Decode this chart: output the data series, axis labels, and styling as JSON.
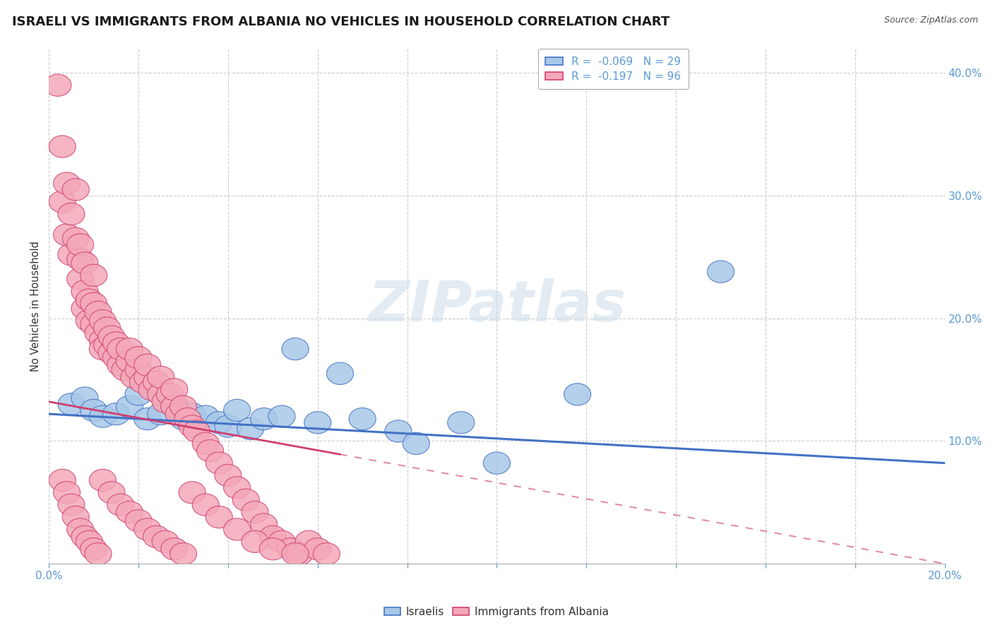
{
  "title": "ISRAELI VS IMMIGRANTS FROM ALBANIA NO VEHICLES IN HOUSEHOLD CORRELATION CHART",
  "source_text": "Source: ZipAtlas.com",
  "ylabel": "No Vehicles in Household",
  "xlim": [
    0.0,
    0.2
  ],
  "ylim": [
    0.0,
    0.42
  ],
  "legend_r1": "-0.069",
  "legend_n1": "29",
  "legend_r2": "-0.197",
  "legend_n2": "96",
  "watermark": "ZIPatlas",
  "color_israeli": "#a8c8e8",
  "color_albania": "#f4a8b8",
  "color_line_israeli": "#4472c4",
  "color_line_albania": "#d04070",
  "color_title": "#1a1a1a",
  "color_source": "#555555",
  "color_axis": "#5b9bd5",
  "isr_line_start_y": 0.122,
  "isr_line_end_y": 0.082,
  "alb_line_start_y": 0.132,
  "alb_line_end_y": 0.0,
  "alb_line_solid_end_x": 0.065,
  "israelis_x": [
    0.005,
    0.008,
    0.01,
    0.012,
    0.015,
    0.018,
    0.02,
    0.022,
    0.025,
    0.028,
    0.03,
    0.032,
    0.035,
    0.038,
    0.04,
    0.042,
    0.045,
    0.048,
    0.052,
    0.055,
    0.06,
    0.065,
    0.07,
    0.078,
    0.082,
    0.092,
    0.1,
    0.118,
    0.15
  ],
  "israelis_y": [
    0.13,
    0.135,
    0.125,
    0.12,
    0.122,
    0.128,
    0.138,
    0.118,
    0.122,
    0.13,
    0.118,
    0.122,
    0.12,
    0.115,
    0.112,
    0.125,
    0.11,
    0.118,
    0.12,
    0.175,
    0.115,
    0.155,
    0.118,
    0.108,
    0.098,
    0.115,
    0.082,
    0.138,
    0.238
  ],
  "albania_x": [
    0.002,
    0.003,
    0.003,
    0.004,
    0.004,
    0.005,
    0.005,
    0.006,
    0.006,
    0.007,
    0.007,
    0.007,
    0.008,
    0.008,
    0.008,
    0.009,
    0.009,
    0.01,
    0.01,
    0.01,
    0.011,
    0.011,
    0.012,
    0.012,
    0.012,
    0.013,
    0.013,
    0.014,
    0.014,
    0.015,
    0.015,
    0.016,
    0.016,
    0.017,
    0.018,
    0.018,
    0.019,
    0.02,
    0.02,
    0.021,
    0.022,
    0.022,
    0.023,
    0.024,
    0.025,
    0.025,
    0.026,
    0.027,
    0.028,
    0.028,
    0.029,
    0.03,
    0.031,
    0.032,
    0.033,
    0.035,
    0.036,
    0.038,
    0.04,
    0.042,
    0.044,
    0.046,
    0.048,
    0.05,
    0.052,
    0.054,
    0.056,
    0.058,
    0.06,
    0.062,
    0.003,
    0.004,
    0.005,
    0.006,
    0.007,
    0.008,
    0.009,
    0.01,
    0.011,
    0.012,
    0.014,
    0.016,
    0.018,
    0.02,
    0.022,
    0.024,
    0.026,
    0.028,
    0.03,
    0.032,
    0.035,
    0.038,
    0.042,
    0.046,
    0.05,
    0.055
  ],
  "albania_y": [
    0.39,
    0.34,
    0.295,
    0.268,
    0.31,
    0.252,
    0.285,
    0.265,
    0.305,
    0.248,
    0.232,
    0.26,
    0.245,
    0.222,
    0.208,
    0.215,
    0.198,
    0.212,
    0.195,
    0.235,
    0.188,
    0.205,
    0.182,
    0.198,
    0.175,
    0.178,
    0.192,
    0.172,
    0.185,
    0.168,
    0.18,
    0.162,
    0.175,
    0.158,
    0.165,
    0.175,
    0.152,
    0.158,
    0.168,
    0.148,
    0.152,
    0.162,
    0.142,
    0.148,
    0.138,
    0.152,
    0.132,
    0.138,
    0.128,
    0.142,
    0.122,
    0.128,
    0.118,
    0.112,
    0.108,
    0.098,
    0.092,
    0.082,
    0.072,
    0.062,
    0.052,
    0.042,
    0.032,
    0.022,
    0.018,
    0.012,
    0.008,
    0.018,
    0.012,
    0.008,
    0.068,
    0.058,
    0.048,
    0.038,
    0.028,
    0.022,
    0.018,
    0.012,
    0.008,
    0.068,
    0.058,
    0.048,
    0.042,
    0.035,
    0.028,
    0.022,
    0.018,
    0.012,
    0.008,
    0.058,
    0.048,
    0.038,
    0.028,
    0.018,
    0.012,
    0.008
  ]
}
